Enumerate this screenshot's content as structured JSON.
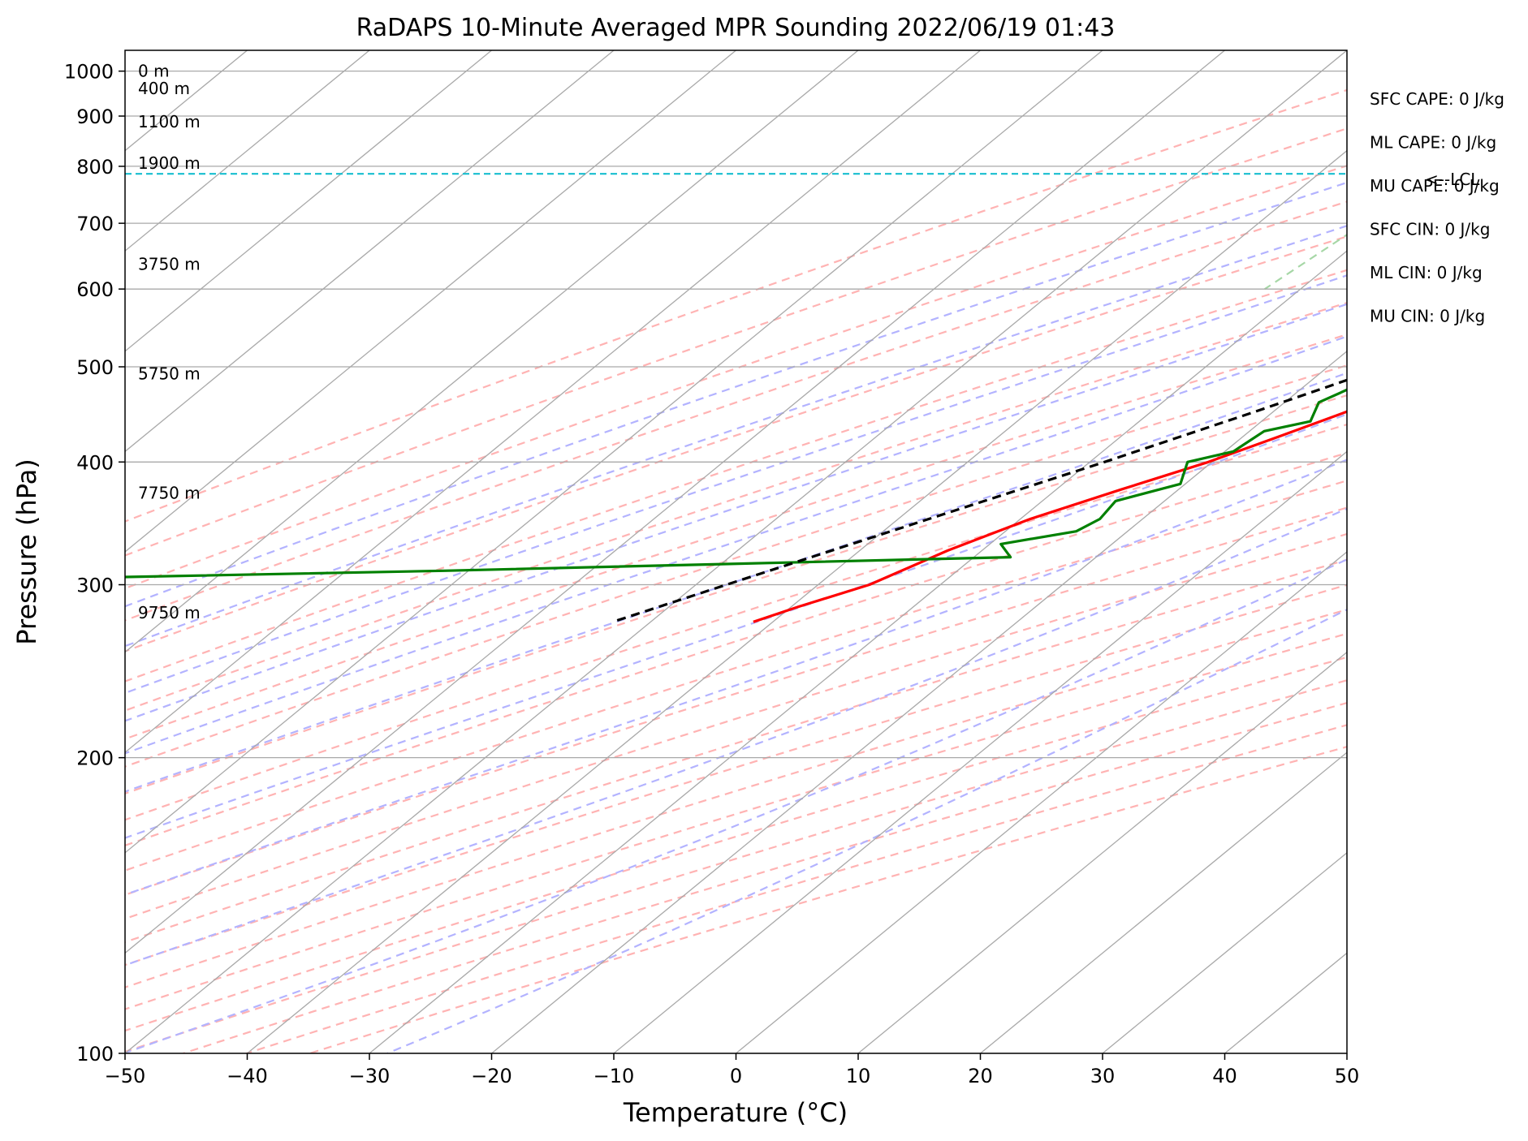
{
  "chart_data": {
    "type": "line",
    "title": "RaDAPS 10-Minute Averaged MPR Sounding 2022/06/19 01:43",
    "xlabel": "Temperature (°C)",
    "ylabel": "Pressure (hPa)",
    "xlim": [
      -50,
      50
    ],
    "ylim": [
      1050,
      100
    ],
    "y_scale": "log",
    "skew": "skew-T log-p",
    "grid": true,
    "x_ticks": [
      "−50",
      "−40",
      "−30",
      "−20",
      "−10",
      "0",
      "10",
      "20",
      "30",
      "40",
      "50"
    ],
    "y_ticks": [
      "100",
      "200",
      "300",
      "400",
      "500",
      "600",
      "700",
      "800",
      "900",
      "1000"
    ],
    "height_labels": [
      {
        "pressure": 1000,
        "label": "0 m"
      },
      {
        "pressure": 960,
        "label": "400 m"
      },
      {
        "pressure": 888,
        "label": "1100 m"
      },
      {
        "pressure": 806,
        "label": "1900 m"
      },
      {
        "pressure": 636,
        "label": "3750 m"
      },
      {
        "pressure": 492,
        "label": "5750 m"
      },
      {
        "pressure": 372,
        "label": "7750 m"
      },
      {
        "pressure": 281,
        "label": "9750 m"
      }
    ],
    "stats": [
      "SFC CAPE: 0 J/kg",
      "ML CAPE: 0 J/kg",
      "MU CAPE: 0 J/kg",
      "SFC CIN: 0 J/kg",
      "ML CIN: 0 J/kg",
      "MU CIN: 0 J/kg"
    ],
    "lcl": {
      "pressure": 786,
      "label": "<--LCL",
      "color": "#17becf"
    },
    "series": [
      {
        "key": "temperature",
        "color": "#ff0000",
        "p": [
          990,
          975,
          960,
          945,
          930,
          915,
          900,
          885,
          870,
          855,
          840,
          825,
          810,
          795,
          780,
          760,
          740,
          720,
          700,
          675,
          650,
          625,
          600,
          575,
          550,
          525,
          500,
          475,
          450,
          425,
          400,
          375,
          350,
          325,
          300,
          285,
          275
        ],
        "t": [
          27.3,
          25.9,
          24.6,
          23.6,
          22.9,
          22.3,
          21.4,
          20.5,
          19.8,
          19.0,
          18.6,
          17.6,
          16.8,
          16.1,
          15.1,
          13.7,
          12.6,
          11.1,
          10.1,
          7.8,
          5.2,
          2.6,
          0.2,
          -2.1,
          -3.7,
          -6.0,
          -8.7,
          -11.7,
          -14.0,
          -17.0,
          -20.3,
          -24.7,
          -29.2,
          -32.8,
          -35.8,
          -39.4,
          -41.6
        ]
      },
      {
        "key": "dewpoint",
        "color": "#008000",
        "p": [
          990,
          985,
          975,
          965,
          958,
          952,
          940,
          925,
          915,
          905,
          895,
          885,
          870,
          855,
          840,
          820,
          805,
          790,
          770,
          745,
          720,
          700,
          680,
          660,
          640,
          625,
          610,
          595,
          580,
          560,
          540,
          520,
          500,
          480,
          460,
          440,
          430,
          410,
          400,
          380,
          365,
          350,
          340,
          330,
          320,
          310,
          305
        ],
        "t": [
          11.2,
          7.5,
          5.8,
          5.0,
          5.4,
          7.0,
          7.8,
          9.0,
          7.8,
          5.2,
          4.8,
          4.5,
          -1.0,
          -1.5,
          -4.0,
          -6.0,
          -9.0,
          -14.5,
          -18.0,
          -18.4,
          -17.5,
          -18.5,
          -17.8,
          -15.0,
          -18.3,
          -18.7,
          -18.0,
          -16.6,
          -15.0,
          -13.4,
          -13.5,
          -13.6,
          -14.5,
          -15.7,
          -17.2,
          -16.0,
          -18.8,
          -19.3,
          -22.0,
          -20.4,
          -24.0,
          -23.5,
          -24.2,
          -29.1,
          -27.0,
          -72,
          -100
        ]
      },
      {
        "key": "parcel",
        "color": "#000000",
        "dashed": true,
        "p": [
          990,
          940,
          900,
          860,
          820,
          786,
          740,
          700,
          650,
          600,
          550,
          500,
          450,
          400,
          350,
          300,
          275
        ],
        "t": [
          27.3,
          22.4,
          18.3,
          14.2,
          9.9,
          6.2,
          3.9,
          1.5,
          -1.9,
          -5.8,
          -10.2,
          -15.3,
          -21.5,
          -28.8,
          -37.5,
          -47.5,
          -53.1
        ]
      }
    ],
    "background_lines": {
      "isotherms_c": [
        -200,
        -190,
        -180,
        -170,
        -160,
        -150,
        -140,
        -130,
        -120,
        -110,
        -100,
        -90,
        -80,
        -70,
        -60,
        -50,
        -40,
        -30,
        -20,
        -10,
        0,
        10,
        20,
        30,
        40,
        50
      ],
      "dry_adiabats_k": [
        230,
        240,
        250,
        260,
        270,
        280,
        290,
        300,
        310,
        320,
        330,
        340,
        350,
        360,
        370,
        380,
        390,
        400,
        410,
        420,
        430,
        440,
        450,
        460
      ],
      "moist_adiabats_c": [
        -20,
        -10,
        0,
        5,
        10,
        15,
        20,
        25,
        30,
        35,
        40
      ],
      "mixing_ratios_gkg": [
        0.4,
        1,
        2,
        4,
        7,
        10,
        16,
        24,
        32
      ],
      "colors": {
        "isotherm": "#a9a9a9",
        "dry_adiabat": "#ffb3b3",
        "moist_adiabat": "#b3b3ff",
        "mixing_ratio": "#a6d7a6"
      }
    }
  }
}
